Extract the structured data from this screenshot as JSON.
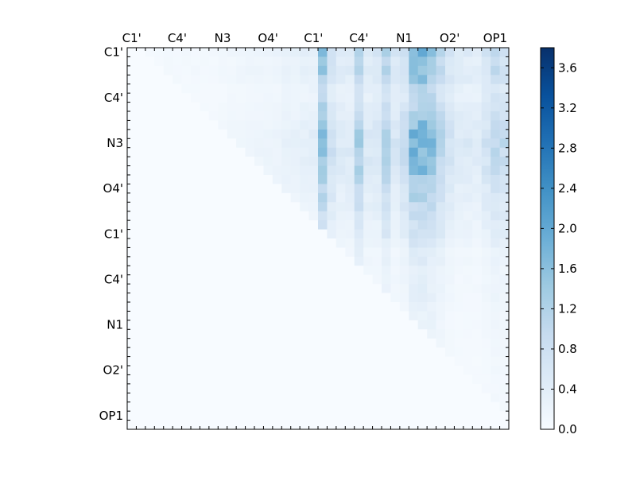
{
  "chart_data": {
    "type": "heatmap",
    "title": "",
    "xlabel": "",
    "ylabel": "",
    "n": 42,
    "x_tick_labels": [
      "C1'",
      "C4'",
      "N3",
      "O4'",
      "C1'",
      "C4'",
      "N1",
      "O2'",
      "OP1"
    ],
    "y_tick_labels": [
      "C1'",
      "C4'",
      "N3",
      "O4'",
      "C1'",
      "C4'",
      "N1",
      "O2'",
      "OP1"
    ],
    "tick_label_indices": [
      0,
      5,
      10,
      15,
      20,
      25,
      30,
      35,
      40
    ],
    "colorbar": {
      "colormap": "Blues",
      "vmin": 0.0,
      "vmax": 3.8,
      "ticks": [
        "0.0",
        "0.4",
        "0.8",
        "1.2",
        "1.6",
        "2.0",
        "2.4",
        "2.8",
        "3.2",
        "3.6"
      ]
    },
    "note": "upper-triangular matrix of values; lower triangle is ~0",
    "row_intensity_profile": [
      1.0,
      0.8,
      0.9,
      0.8,
      0.6,
      0.6,
      0.7,
      0.8,
      0.9,
      1.0,
      1.05,
      1.0,
      0.95,
      0.9,
      0.8,
      0.7,
      0.65,
      0.6,
      0.5,
      0.45,
      0.45,
      0.35,
      0.25,
      0.25,
      0.2,
      0.2,
      0.2,
      0.2,
      0.15,
      0.15,
      0.15,
      0.15,
      0.12,
      0.12,
      0.12,
      0.12,
      0.1,
      0.1,
      0.1,
      0.1,
      0.1,
      0.1
    ],
    "col_intensity_profile": [
      0.05,
      0.08,
      0.08,
      0.08,
      0.1,
      0.1,
      0.1,
      0.1,
      0.1,
      0.1,
      0.12,
      0.15,
      0.18,
      0.2,
      0.2,
      0.22,
      0.22,
      0.28,
      0.3,
      0.35,
      0.4,
      1.6,
      0.8,
      0.5,
      0.5,
      1.3,
      0.55,
      0.6,
      1.2,
      0.6,
      0.9,
      1.7,
      1.8,
      1.6,
      1.1,
      0.7,
      0.5,
      0.5,
      0.45,
      0.7,
      1.0,
      0.9
    ]
  }
}
